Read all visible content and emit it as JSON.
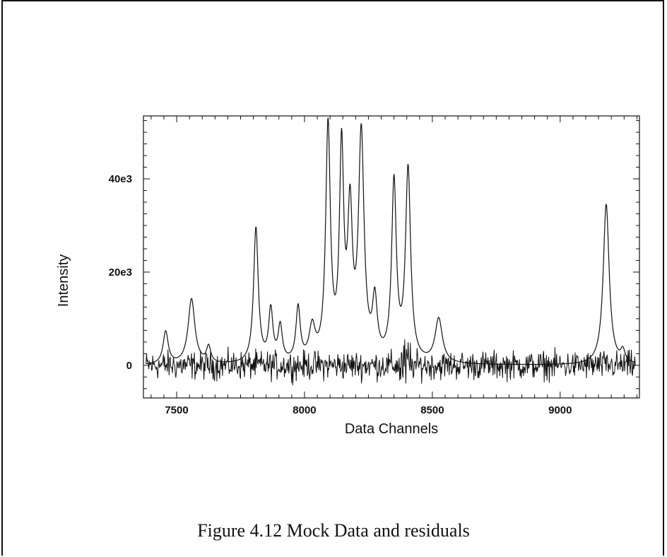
{
  "caption": "Figure 4.12 Mock Data and residuals",
  "chart_data": {
    "type": "line",
    "xlabel": "Data Channels",
    "ylabel": "Intensity",
    "xlim": [
      7370,
      9310
    ],
    "ylim": [
      -7000,
      53500
    ],
    "xticks": [
      7500,
      8000,
      8500,
      9000
    ],
    "yticks": [
      0,
      20000,
      40000
    ],
    "yticklabels": [
      "0",
      "20e3",
      "40e3"
    ],
    "grid": false,
    "legend": "none",
    "series": [
      {
        "role": "mock-data",
        "baseline_level": 0,
        "peaks": [
          {
            "x": 7457,
            "height": 7000,
            "width": 12
          },
          {
            "x": 7558,
            "height": 14000,
            "width": 16
          },
          {
            "x": 7625,
            "height": 3500,
            "width": 10
          },
          {
            "x": 7810,
            "height": 29000,
            "width": 11
          },
          {
            "x": 7868,
            "height": 11000,
            "width": 10
          },
          {
            "x": 7905,
            "height": 7500,
            "width": 10
          },
          {
            "x": 7975,
            "height": 11500,
            "width": 10
          },
          {
            "x": 8030,
            "height": 7000,
            "width": 14
          },
          {
            "x": 8092,
            "height": 50000,
            "width": 11
          },
          {
            "x": 8145,
            "height": 44000,
            "width": 10
          },
          {
            "x": 8178,
            "height": 30000,
            "width": 11
          },
          {
            "x": 8222,
            "height": 48000,
            "width": 13
          },
          {
            "x": 8275,
            "height": 12000,
            "width": 11
          },
          {
            "x": 8350,
            "height": 38000,
            "width": 11
          },
          {
            "x": 8405,
            "height": 41000,
            "width": 12
          },
          {
            "x": 8525,
            "height": 9500,
            "width": 17
          },
          {
            "x": 9180,
            "height": 34500,
            "width": 14
          },
          {
            "x": 9245,
            "height": 2500,
            "width": 10
          }
        ]
      },
      {
        "role": "residuals",
        "baseline_level": 0,
        "noise_amplitude": 2500,
        "range": [
          -6000,
          7000
        ]
      }
    ]
  }
}
